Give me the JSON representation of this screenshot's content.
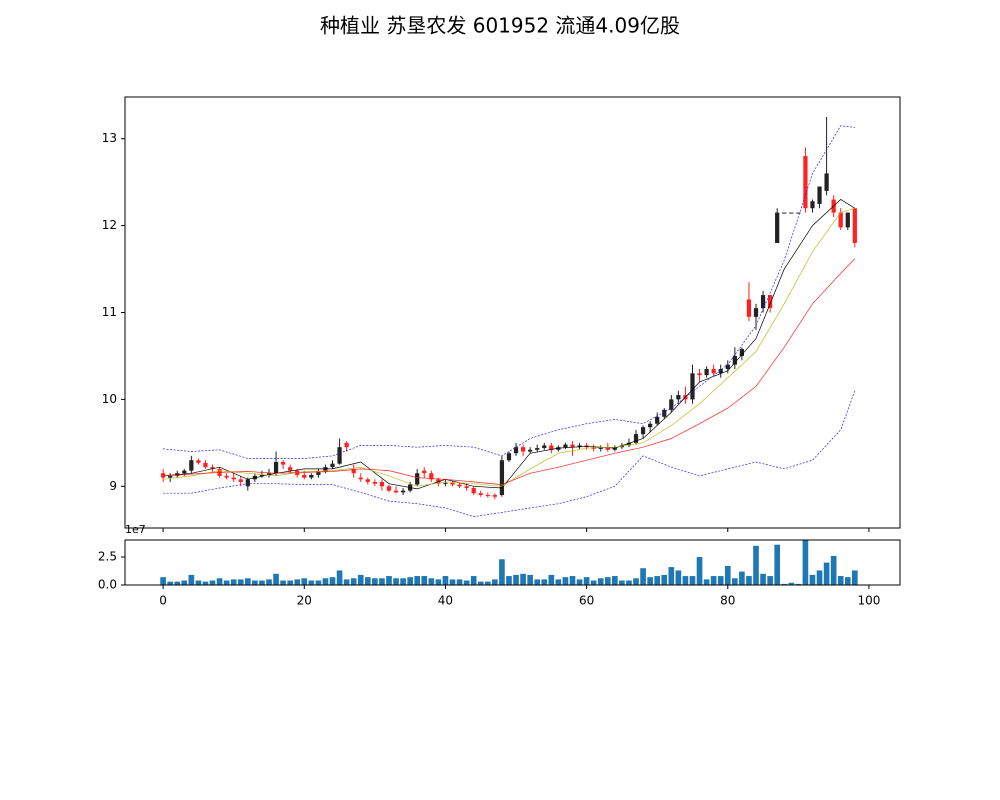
{
  "chart_data": {
    "type": "candlestick",
    "title": "种植业 苏垦农发 601952 流通4.09亿股",
    "colorup": "#222222",
    "colordown": "#ff2020",
    "xlim": [
      -5.4,
      104.4
    ],
    "xticks": [
      0,
      20,
      40,
      60,
      80,
      100
    ],
    "ylim": [
      8.52,
      13.48
    ],
    "yticks": [
      9,
      10,
      11,
      12,
      13
    ],
    "x": [
      0,
      1,
      2,
      3,
      4,
      5,
      6,
      7,
      8,
      9,
      10,
      11,
      12,
      13,
      14,
      15,
      16,
      17,
      18,
      19,
      20,
      21,
      22,
      23,
      24,
      25,
      26,
      27,
      28,
      29,
      30,
      31,
      32,
      33,
      34,
      35,
      36,
      37,
      38,
      39,
      40,
      41,
      42,
      43,
      44,
      45,
      46,
      47,
      48,
      49,
      50,
      51,
      52,
      53,
      54,
      55,
      56,
      57,
      58,
      59,
      60,
      61,
      62,
      63,
      64,
      65,
      66,
      67,
      68,
      69,
      70,
      71,
      72,
      73,
      74,
      75,
      76,
      77,
      78,
      79,
      80,
      81,
      82,
      83,
      84,
      85,
      86,
      87,
      88,
      89,
      90,
      91,
      92,
      93,
      94,
      95,
      96,
      97,
      98
    ],
    "open": [
      9.15,
      9.1,
      9.12,
      9.15,
      9.18,
      9.3,
      9.27,
      9.22,
      9.2,
      9.12,
      9.1,
      9.08,
      9.0,
      9.08,
      9.12,
      9.13,
      9.15,
      9.28,
      9.22,
      9.18,
      9.13,
      9.1,
      9.13,
      9.17,
      9.22,
      9.26,
      9.5,
      9.2,
      9.1,
      9.08,
      9.05,
      9.05,
      9.0,
      8.95,
      8.93,
      8.95,
      9.02,
      9.18,
      9.15,
      9.08,
      9.03,
      9.04,
      9.02,
      9.0,
      8.98,
      8.92,
      8.9,
      8.9,
      8.9,
      9.3,
      9.38,
      9.45,
      9.4,
      9.42,
      9.44,
      9.47,
      9.42,
      9.45,
      9.48,
      9.45,
      9.47,
      9.45,
      9.43,
      9.45,
      9.42,
      9.45,
      9.47,
      9.5,
      9.6,
      9.68,
      9.72,
      9.8,
      9.88,
      10.0,
      10.05,
      10.0,
      10.3,
      10.28,
      10.35,
      10.3,
      10.35,
      10.4,
      10.5,
      11.15,
      10.95,
      11.05,
      11.2,
      11.8,
      12.15,
      12.15,
      12.15,
      12.8,
      12.2,
      12.25,
      12.4,
      12.3,
      12.15,
      11.98,
      12.2
    ],
    "high": [
      9.2,
      9.15,
      9.18,
      9.2,
      9.35,
      9.32,
      9.3,
      9.25,
      9.22,
      9.15,
      9.15,
      9.12,
      9.1,
      9.15,
      9.18,
      9.2,
      9.4,
      9.3,
      9.25,
      9.2,
      9.18,
      9.15,
      9.2,
      9.25,
      9.3,
      9.55,
      9.52,
      9.25,
      9.15,
      9.1,
      9.08,
      9.08,
      9.02,
      9.0,
      8.98,
      9.05,
      9.2,
      9.22,
      9.18,
      9.1,
      9.08,
      9.06,
      9.05,
      9.03,
      9.0,
      8.95,
      8.93,
      8.92,
      9.35,
      9.4,
      9.5,
      9.48,
      9.45,
      9.48,
      9.5,
      9.5,
      9.47,
      9.5,
      9.52,
      9.5,
      9.5,
      9.48,
      9.47,
      9.5,
      9.47,
      9.5,
      9.55,
      9.65,
      9.7,
      9.75,
      9.85,
      9.9,
      10.05,
      10.1,
      10.15,
      10.4,
      10.35,
      10.38,
      10.4,
      10.4,
      10.45,
      10.6,
      10.6,
      11.35,
      11.1,
      11.25,
      11.2,
      12.2,
      12.15,
      12.15,
      12.15,
      12.9,
      12.3,
      12.45,
      13.25,
      12.35,
      12.2,
      12.15,
      12.2
    ],
    "low": [
      9.05,
      9.05,
      9.1,
      9.12,
      9.15,
      9.25,
      9.2,
      9.15,
      9.1,
      9.08,
      9.05,
      9.0,
      8.95,
      9.05,
      9.1,
      9.1,
      9.12,
      9.2,
      9.15,
      9.1,
      9.08,
      9.08,
      9.1,
      9.15,
      9.2,
      9.25,
      9.4,
      9.1,
      9.05,
      9.02,
      9.0,
      8.95,
      8.93,
      8.92,
      8.9,
      8.93,
      9.0,
      9.1,
      9.05,
      9.0,
      9.0,
      9.0,
      8.98,
      8.95,
      8.9,
      8.88,
      8.87,
      8.85,
      8.88,
      9.28,
      9.35,
      9.35,
      9.38,
      9.4,
      9.42,
      9.38,
      9.4,
      9.43,
      9.35,
      9.43,
      9.42,
      9.4,
      9.4,
      9.4,
      9.4,
      9.43,
      9.45,
      9.48,
      9.55,
      9.62,
      9.7,
      9.78,
      9.85,
      9.95,
      9.95,
      9.95,
      10.2,
      10.25,
      10.28,
      10.25,
      10.3,
      10.35,
      10.45,
      10.9,
      10.8,
      11.0,
      11.0,
      11.8,
      12.15,
      12.15,
      12.15,
      12.15,
      12.15,
      12.2,
      12.35,
      12.1,
      11.95,
      11.95,
      11.75
    ],
    "close": [
      9.1,
      9.12,
      9.15,
      9.18,
      9.3,
      9.27,
      9.22,
      9.2,
      9.12,
      9.1,
      9.08,
      9.05,
      9.08,
      9.12,
      9.13,
      9.15,
      9.28,
      9.25,
      9.18,
      9.13,
      9.1,
      9.13,
      9.17,
      9.22,
      9.26,
      9.45,
      9.45,
      9.15,
      9.08,
      9.05,
      9.03,
      9.0,
      8.95,
      8.93,
      8.95,
      9.02,
      9.15,
      9.15,
      9.08,
      9.03,
      9.04,
      9.02,
      9.0,
      8.98,
      8.92,
      8.9,
      8.89,
      8.88,
      9.3,
      9.38,
      9.45,
      9.4,
      9.42,
      9.44,
      9.47,
      9.42,
      9.45,
      9.48,
      9.45,
      9.47,
      9.45,
      9.43,
      9.45,
      9.42,
      9.45,
      9.47,
      9.5,
      9.6,
      9.68,
      9.72,
      9.8,
      9.88,
      10.0,
      10.05,
      10.0,
      10.3,
      10.28,
      10.35,
      10.3,
      10.35,
      10.4,
      10.5,
      10.58,
      10.95,
      11.05,
      11.2,
      11.05,
      12.15,
      12.15,
      12.15,
      12.15,
      12.2,
      12.28,
      12.45,
      12.6,
      12.15,
      11.98,
      12.15,
      11.8
    ],
    "lines": [
      {
        "color": "#000000",
        "linestyle": "solid",
        "x": [
          0,
          4,
          8,
          12,
          16,
          20,
          24,
          28,
          32,
          36,
          40,
          44,
          48,
          52,
          56,
          60,
          64,
          68,
          72,
          76,
          80,
          84,
          88,
          92,
          96,
          98
        ],
        "values": [
          9.12,
          9.15,
          9.22,
          9.08,
          9.15,
          9.2,
          9.2,
          9.28,
          9.03,
          8.97,
          9.08,
          9.0,
          8.98,
          9.38,
          9.44,
          9.46,
          9.44,
          9.55,
          9.85,
          10.2,
          10.33,
          10.7,
          11.5,
          12.0,
          12.3,
          12.2
        ]
      },
      {
        "color": "#bcbd22",
        "linestyle": "solid",
        "x": [
          0,
          4,
          8,
          12,
          16,
          20,
          24,
          28,
          32,
          36,
          40,
          44,
          48,
          52,
          56,
          60,
          64,
          68,
          72,
          76,
          80,
          84,
          88,
          92,
          96,
          98
        ],
        "values": [
          9.08,
          9.12,
          9.18,
          9.15,
          9.12,
          9.17,
          9.18,
          9.22,
          9.12,
          9.0,
          9.05,
          9.03,
          9.0,
          9.2,
          9.38,
          9.44,
          9.45,
          9.5,
          9.7,
          9.95,
          10.25,
          10.55,
          11.1,
          11.7,
          12.15,
          12.2
        ]
      },
      {
        "color": "#ff2020",
        "linestyle": "solid",
        "x": [
          0,
          4,
          8,
          12,
          16,
          20,
          24,
          28,
          32,
          36,
          40,
          44,
          48,
          52,
          56,
          60,
          64,
          68,
          72,
          76,
          80,
          84,
          88,
          92,
          96,
          98
        ],
        "values": [
          9.12,
          9.14,
          9.16,
          9.17,
          9.15,
          9.16,
          9.17,
          9.2,
          9.18,
          9.1,
          9.08,
          9.05,
          9.02,
          9.15,
          9.22,
          9.3,
          9.38,
          9.45,
          9.55,
          9.72,
          9.9,
          10.15,
          10.6,
          11.1,
          11.45,
          11.62
        ]
      },
      {
        "color": "#2020ff",
        "linestyle": "dashed",
        "x": [
          0,
          4,
          8,
          12,
          16,
          20,
          24,
          28,
          32,
          36,
          40,
          44,
          48,
          52,
          56,
          60,
          64,
          68,
          72,
          76,
          80,
          84,
          88,
          92,
          96,
          98
        ],
        "values": [
          9.43,
          9.4,
          9.42,
          9.32,
          9.32,
          9.32,
          9.35,
          9.47,
          9.47,
          9.45,
          9.47,
          9.45,
          9.35,
          9.55,
          9.65,
          9.72,
          9.77,
          9.72,
          9.9,
          10.15,
          10.4,
          10.85,
          11.6,
          12.6,
          13.15,
          13.13
        ]
      },
      {
        "color": "#2020ff",
        "linestyle": "dashed",
        "x": [
          0,
          4,
          8,
          12,
          16,
          20,
          24,
          28,
          32,
          36,
          40,
          44,
          48,
          52,
          56,
          60,
          64,
          68,
          72,
          76,
          80,
          84,
          88,
          92,
          96,
          98
        ],
        "values": [
          8.92,
          8.92,
          8.98,
          9.03,
          9.03,
          9.02,
          9.02,
          8.93,
          8.83,
          8.8,
          8.75,
          8.65,
          8.7,
          8.75,
          8.8,
          8.88,
          9.0,
          9.35,
          9.22,
          9.12,
          9.2,
          9.28,
          9.2,
          9.3,
          9.65,
          10.1
        ]
      }
    ],
    "volume": {
      "color": "#1f77b4",
      "offset_label": "1e7",
      "ylim": [
        0,
        4.02
      ],
      "yticks": [
        {
          "value": 0,
          "label": "0.0"
        },
        {
          "value": 2.5,
          "label": "2.5"
        }
      ],
      "values": [
        0.7,
        0.3,
        0.3,
        0.4,
        0.9,
        0.4,
        0.3,
        0.4,
        0.6,
        0.4,
        0.5,
        0.5,
        0.6,
        0.4,
        0.4,
        0.5,
        1.0,
        0.4,
        0.4,
        0.5,
        0.6,
        0.4,
        0.4,
        0.6,
        0.7,
        1.3,
        0.5,
        0.6,
        0.9,
        0.7,
        0.6,
        0.6,
        0.8,
        0.6,
        0.6,
        0.7,
        0.8,
        0.8,
        0.6,
        0.5,
        0.8,
        0.5,
        0.5,
        0.4,
        0.8,
        0.3,
        0.3,
        0.5,
        2.3,
        0.8,
        0.9,
        1.0,
        0.9,
        0.5,
        0.5,
        0.9,
        0.5,
        0.7,
        0.8,
        0.5,
        0.7,
        0.4,
        0.6,
        0.7,
        0.8,
        0.4,
        0.4,
        0.6,
        1.5,
        0.7,
        0.8,
        0.9,
        1.6,
        1.3,
        0.8,
        0.8,
        2.5,
        0.5,
        0.8,
        0.8,
        1.7,
        0.6,
        1.2,
        0.8,
        3.5,
        1.0,
        0.8,
        3.6,
        0.1,
        0.2,
        0.1,
        4.0,
        0.9,
        1.3,
        2.0,
        2.6,
        0.8,
        0.7,
        1.3
      ]
    }
  }
}
